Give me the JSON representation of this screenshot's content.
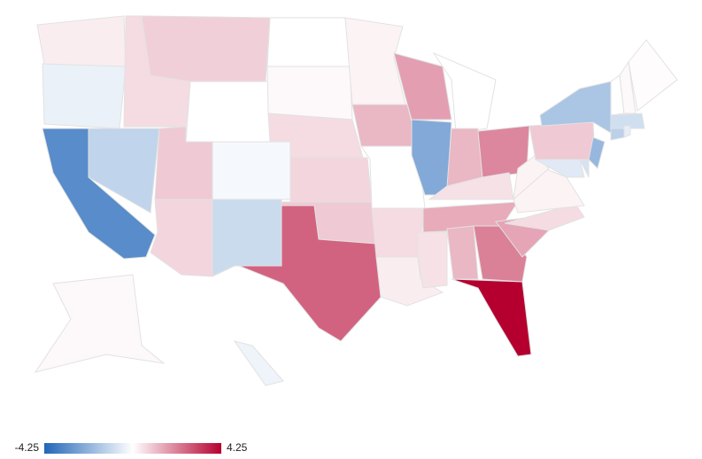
{
  "chart_data": {
    "type": "choropleth",
    "values": [
      0.3,
      -0.4,
      -3.2,
      -1.2,
      0.6,
      0.8,
      0,
      0.9,
      0.7,
      -0.2,
      -1.0,
      0,
      0.1,
      0.6,
      0.7,
      0.9,
      2.6,
      0.2,
      1.2,
      0,
      0.6,
      0.3,
      1.6,
      -2.4,
      0,
      1.2,
      2.0,
      0.5,
      1.4,
      0.5,
      1.2,
      2.1,
      4.25,
      1.5,
      0.6,
      0.2,
      0.2,
      0.9,
      -1.6,
      -2.0,
      -0.6,
      -0.8,
      -1.3,
      -0.9,
      -0.5,
      0,
      0.1,
      0.05,
      0.1,
      -0.3
    ],
    "colorlim": [
      -4.25,
      4.25
    ],
    "colorticks": [
      -4.25,
      4.25
    ],
    "colors": [
      "#2166b8",
      "#ffffff",
      "#b5002f"
    ]
  }
}
